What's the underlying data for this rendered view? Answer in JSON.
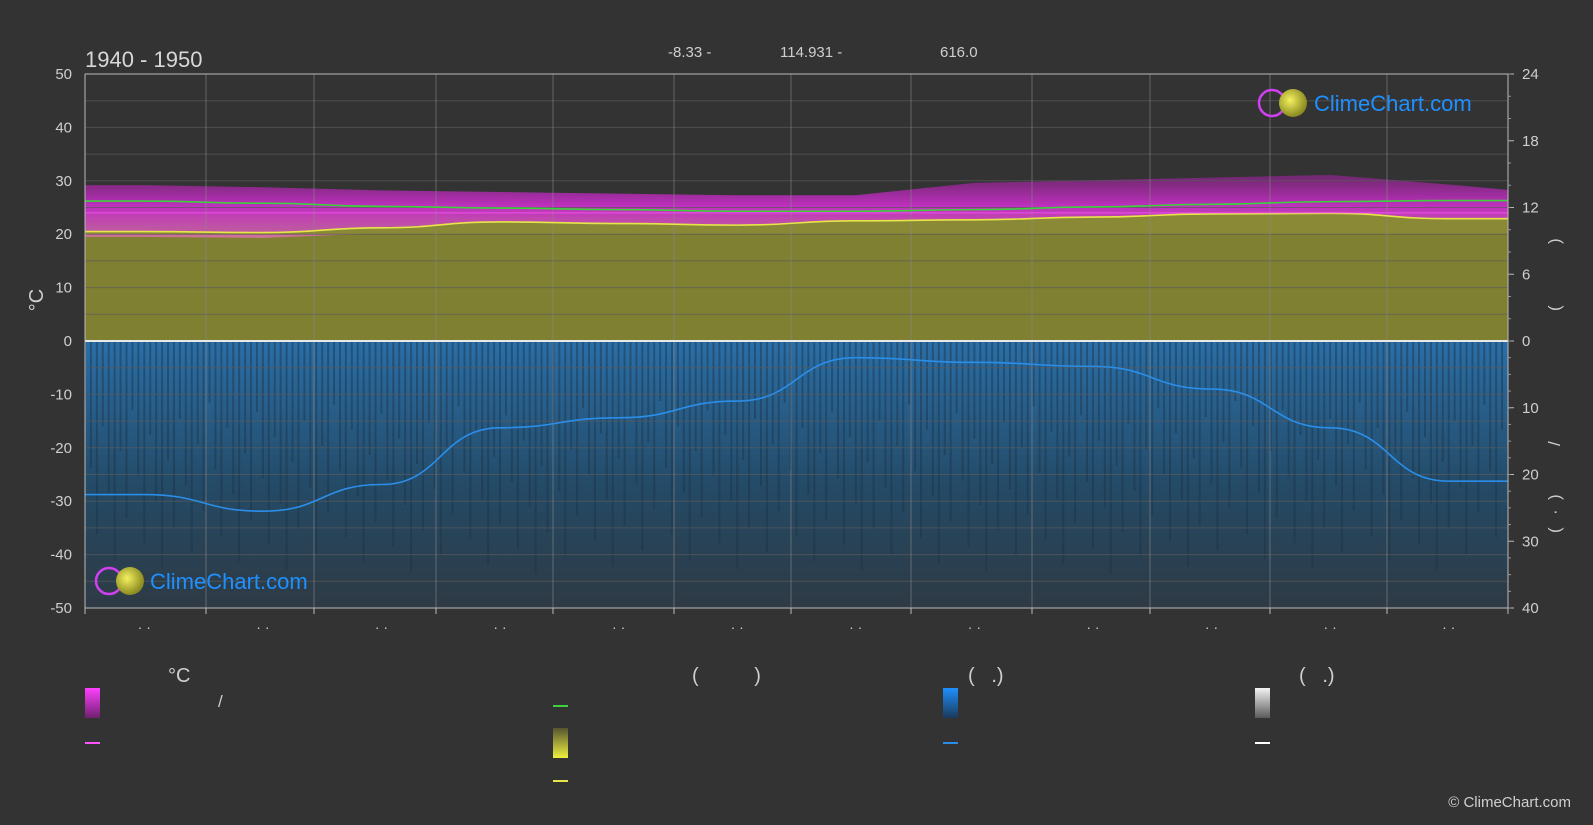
{
  "header": {
    "period": "1940 - 1950",
    "coords": [
      "-8.33 -",
      "114.931 -",
      "616.0"
    ]
  },
  "logo": {
    "text": "ClimeChart.com"
  },
  "copyright": "© ClimeChart.com",
  "chart_data": {
    "type": "area",
    "title": "1940 - 1950",
    "ylabel": "°C",
    "y_left": {
      "range": [
        -50,
        50
      ],
      "ticks": [
        50,
        40,
        30,
        20,
        10,
        0,
        -10,
        -20,
        -30,
        -40,
        -50
      ]
    },
    "y_right_top": {
      "range": [
        0,
        24
      ],
      "ticks": [
        24,
        18,
        12,
        6,
        0
      ],
      "label_glyphs": [
        "(",
        ")"
      ]
    },
    "y_right_bottom": {
      "range": [
        0,
        40
      ],
      "ticks": [
        0,
        10,
        20,
        30,
        40
      ],
      "label_glyphs": [
        "/",
        "(",
        "·",
        ")"
      ]
    },
    "x_tick_labels": [
      "· ·",
      "· ·",
      "· ·",
      "· ·",
      "· ·",
      "· ·",
      "· ·",
      "· ·",
      "· ·",
      "· ·",
      "· ·",
      "· ·"
    ],
    "x": [
      0,
      1,
      2,
      3,
      4,
      5,
      6,
      7,
      8,
      9,
      10,
      11
    ],
    "series": [
      {
        "values": [
          26.2,
          25.8,
          25.2,
          24.9,
          24.6,
          24.3,
          24.3,
          24.6,
          25.1,
          25.6,
          26.1,
          26.3
        ],
        "color": "#3cd23c"
      },
      {
        "values": [
          20.5,
          20.3,
          21.2,
          22.3,
          22.0,
          21.7,
          22.5,
          22.7,
          23.2,
          23.8,
          23.9,
          22.9
        ],
        "color": "#e6e64a"
      },
      {
        "values": [
          24.0,
          24.0,
          24.0,
          24.0,
          24.0,
          24.0,
          24.0,
          24.0,
          24.0,
          24.0,
          24.0,
          24.0
        ],
        "color": "#ff55ff"
      },
      {
        "values": [
          23.0,
          25.5,
          21.5,
          13.0,
          11.5,
          9.0,
          2.5,
          3.2,
          3.8,
          7.2,
          13.0,
          21.0
        ],
        "color": "#2a8ee8"
      }
    ],
    "legend": {
      "columns": [
        {
          "heading": "°C",
          "items": [
            {
              "glyph": "/",
              "swatch": "#e000e0"
            },
            {
              "glyph": "",
              "line": "#ff55ff"
            }
          ]
        },
        {
          "heading": "(          )",
          "items": [
            {
              "glyph": "",
              "line": "#3cd23c"
            },
            {
              "glyph": "",
              "swatch": "#e0e040"
            },
            {
              "glyph": "",
              "line": "#e6e64a"
            }
          ]
        },
        {
          "heading": "(   .)",
          "items": [
            {
              "glyph": "",
              "swatch": "#1e88e5"
            },
            {
              "glyph": "",
              "line": "#2a8ee8"
            }
          ]
        },
        {
          "heading": "(   .)",
          "items": [
            {
              "glyph": "",
              "swatch": "#d0d0d0"
            },
            {
              "glyph": "",
              "line": "#ffffff"
            }
          ]
        }
      ]
    }
  }
}
